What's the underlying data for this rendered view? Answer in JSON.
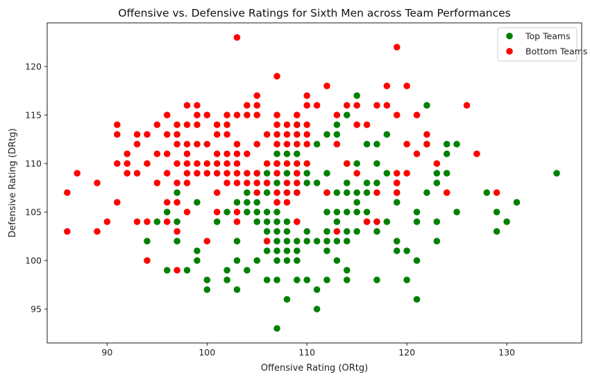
{
  "chart_data": {
    "type": "scatter",
    "title": "Offensive vs. Defensive Ratings for Sixth Men across Team Performances",
    "xlabel": "Offensive Rating (ORtg)",
    "ylabel": "Defensive Rating (DRtg)",
    "xlim": [
      84,
      137.5
    ],
    "ylim": [
      91.5,
      124.5
    ],
    "xticks": [
      90,
      100,
      110,
      120,
      130
    ],
    "yticks": [
      95,
      100,
      105,
      110,
      115,
      120
    ],
    "grid": false,
    "legend_position": "top-right",
    "series": [
      {
        "name": "Top Teams",
        "color": "#008000",
        "points": [
          [
            94,
            102
          ],
          [
            95,
            104
          ],
          [
            96,
            105
          ],
          [
            96,
            99
          ],
          [
            97,
            107
          ],
          [
            97,
            104
          ],
          [
            97,
            102
          ],
          [
            98,
            99
          ],
          [
            99,
            106
          ],
          [
            99,
            101
          ],
          [
            99,
            100
          ],
          [
            100,
            98
          ],
          [
            100,
            97
          ],
          [
            101,
            104
          ],
          [
            102,
            105
          ],
          [
            102,
            99
          ],
          [
            102,
            98
          ],
          [
            103,
            106
          ],
          [
            103,
            102
          ],
          [
            103,
            100
          ],
          [
            103,
            97
          ],
          [
            104,
            107
          ],
          [
            104,
            106
          ],
          [
            104,
            105
          ],
          [
            104,
            99
          ],
          [
            105,
            109
          ],
          [
            105,
            106
          ],
          [
            105,
            105
          ],
          [
            105,
            104
          ],
          [
            105,
            100
          ],
          [
            106,
            109
          ],
          [
            106,
            108
          ],
          [
            106,
            107
          ],
          [
            106,
            105
          ],
          [
            106,
            104
          ],
          [
            106,
            103
          ],
          [
            106,
            102
          ],
          [
            106,
            101
          ],
          [
            106,
            98
          ],
          [
            107,
            111
          ],
          [
            107,
            110
          ],
          [
            107,
            108
          ],
          [
            107,
            106
          ],
          [
            107,
            105
          ],
          [
            107,
            104
          ],
          [
            107,
            103
          ],
          [
            107,
            102
          ],
          [
            107,
            101
          ],
          [
            107,
            100
          ],
          [
            107,
            98
          ],
          [
            107,
            93
          ],
          [
            108,
            111
          ],
          [
            108,
            109
          ],
          [
            108,
            107
          ],
          [
            108,
            104
          ],
          [
            108,
            103
          ],
          [
            108,
            102
          ],
          [
            108,
            101
          ],
          [
            108,
            100
          ],
          [
            108,
            96
          ],
          [
            109,
            114
          ],
          [
            109,
            111
          ],
          [
            109,
            109
          ],
          [
            109,
            107
          ],
          [
            109,
            104
          ],
          [
            109,
            102
          ],
          [
            109,
            101
          ],
          [
            109,
            100
          ],
          [
            109,
            98
          ],
          [
            110,
            109
          ],
          [
            110,
            108
          ],
          [
            110,
            103
          ],
          [
            110,
            102
          ],
          [
            110,
            98
          ],
          [
            111,
            112
          ],
          [
            111,
            108
          ],
          [
            111,
            102
          ],
          [
            111,
            97
          ],
          [
            111,
            95
          ],
          [
            112,
            113
          ],
          [
            112,
            109
          ],
          [
            112,
            107
          ],
          [
            112,
            105
          ],
          [
            112,
            103
          ],
          [
            112,
            102
          ],
          [
            112,
            101
          ],
          [
            112,
            98
          ],
          [
            113,
            113
          ],
          [
            113,
            114
          ],
          [
            113,
            107
          ],
          [
            113,
            105
          ],
          [
            113,
            104
          ],
          [
            113,
            102
          ],
          [
            113,
            100
          ],
          [
            114,
            115
          ],
          [
            114,
            110
          ],
          [
            114,
            108
          ],
          [
            114,
            107
          ],
          [
            114,
            105
          ],
          [
            114,
            103
          ],
          [
            114,
            102
          ],
          [
            114,
            99
          ],
          [
            114,
            98
          ],
          [
            115,
            117
          ],
          [
            115,
            110
          ],
          [
            115,
            107
          ],
          [
            115,
            106
          ],
          [
            115,
            105
          ],
          [
            115,
            103
          ],
          [
            116,
            112
          ],
          [
            116,
            108
          ],
          [
            116,
            107
          ],
          [
            116,
            105
          ],
          [
            116,
            104
          ],
          [
            117,
            112
          ],
          [
            117,
            110
          ],
          [
            117,
            108
          ],
          [
            117,
            104
          ],
          [
            117,
            103
          ],
          [
            117,
            98
          ],
          [
            118,
            113
          ],
          [
            118,
            109
          ],
          [
            118,
            104
          ],
          [
            119,
            107
          ],
          [
            119,
            106
          ],
          [
            119,
            102
          ],
          [
            119,
            101
          ],
          [
            119,
            108
          ],
          [
            120,
            101
          ],
          [
            120,
            98
          ],
          [
            121,
            105
          ],
          [
            121,
            104
          ],
          [
            121,
            100
          ],
          [
            121,
            96
          ],
          [
            122,
            116
          ],
          [
            122,
            112
          ],
          [
            122,
            107
          ],
          [
            123,
            109
          ],
          [
            123,
            108
          ],
          [
            123,
            104
          ],
          [
            123,
            102
          ],
          [
            124,
            112
          ],
          [
            124,
            111
          ],
          [
            124,
            109
          ],
          [
            125,
            112
          ],
          [
            125,
            105
          ],
          [
            128,
            107
          ],
          [
            129,
            105
          ],
          [
            129,
            103
          ],
          [
            130,
            104
          ],
          [
            131,
            106
          ],
          [
            135,
            109
          ]
        ]
      },
      {
        "name": "Bottom Teams",
        "color": "#ff0000",
        "points": [
          [
            86,
            107
          ],
          [
            86,
            103
          ],
          [
            87,
            109
          ],
          [
            89,
            108
          ],
          [
            89,
            103
          ],
          [
            90,
            104
          ],
          [
            91,
            114
          ],
          [
            91,
            113
          ],
          [
            91,
            110
          ],
          [
            91,
            106
          ],
          [
            92,
            111
          ],
          [
            92,
            110
          ],
          [
            92,
            109
          ],
          [
            93,
            113
          ],
          [
            93,
            112
          ],
          [
            93,
            109
          ],
          [
            93,
            104
          ],
          [
            94,
            113
          ],
          [
            94,
            110
          ],
          [
            94,
            104
          ],
          [
            94,
            100
          ],
          [
            95,
            114
          ],
          [
            95,
            111
          ],
          [
            95,
            108
          ],
          [
            96,
            115
          ],
          [
            96,
            113
          ],
          [
            96,
            111
          ],
          [
            96,
            109
          ],
          [
            96,
            106
          ],
          [
            96,
            104
          ],
          [
            97,
            114
          ],
          [
            97,
            113
          ],
          [
            97,
            112
          ],
          [
            97,
            110
          ],
          [
            97,
            108
          ],
          [
            97,
            106
          ],
          [
            97,
            103
          ],
          [
            97,
            99
          ],
          [
            98,
            116
          ],
          [
            98,
            114
          ],
          [
            98,
            112
          ],
          [
            98,
            111
          ],
          [
            98,
            110
          ],
          [
            98,
            109
          ],
          [
            98,
            108
          ],
          [
            98,
            105
          ],
          [
            99,
            116
          ],
          [
            99,
            115
          ],
          [
            99,
            114
          ],
          [
            99,
            112
          ],
          [
            99,
            110
          ],
          [
            99,
            109
          ],
          [
            100,
            115
          ],
          [
            100,
            112
          ],
          [
            100,
            110
          ],
          [
            100,
            109
          ],
          [
            100,
            102
          ],
          [
            101,
            114
          ],
          [
            101,
            113
          ],
          [
            101,
            111
          ],
          [
            101,
            110
          ],
          [
            101,
            109
          ],
          [
            101,
            107
          ],
          [
            101,
            105
          ],
          [
            102,
            115
          ],
          [
            102,
            114
          ],
          [
            102,
            113
          ],
          [
            102,
            111
          ],
          [
            102,
            110
          ],
          [
            102,
            109
          ],
          [
            102,
            108
          ],
          [
            103,
            123
          ],
          [
            103,
            115
          ],
          [
            103,
            112
          ],
          [
            103,
            111
          ],
          [
            103,
            110
          ],
          [
            103,
            109
          ],
          [
            103,
            108
          ],
          [
            103,
            105
          ],
          [
            103,
            104
          ],
          [
            104,
            116
          ],
          [
            104,
            115
          ],
          [
            104,
            111
          ],
          [
            104,
            109
          ],
          [
            104,
            108
          ],
          [
            105,
            117
          ],
          [
            105,
            116
          ],
          [
            105,
            115
          ],
          [
            105,
            112
          ],
          [
            105,
            109
          ],
          [
            105,
            108
          ],
          [
            105,
            107
          ],
          [
            106,
            113
          ],
          [
            106,
            110
          ],
          [
            106,
            108
          ],
          [
            106,
            102
          ],
          [
            107,
            119
          ],
          [
            107,
            115
          ],
          [
            107,
            114
          ],
          [
            107,
            113
          ],
          [
            107,
            112
          ],
          [
            107,
            110
          ],
          [
            107,
            109
          ],
          [
            107,
            107
          ],
          [
            107,
            106
          ],
          [
            108,
            114
          ],
          [
            108,
            113
          ],
          [
            108,
            112
          ],
          [
            108,
            110
          ],
          [
            108,
            108
          ],
          [
            108,
            107
          ],
          [
            108,
            106
          ],
          [
            109,
            115
          ],
          [
            109,
            114
          ],
          [
            109,
            113
          ],
          [
            109,
            112
          ],
          [
            109,
            110
          ],
          [
            109,
            109
          ],
          [
            109,
            108
          ],
          [
            109,
            107
          ],
          [
            109,
            104
          ],
          [
            110,
            117
          ],
          [
            110,
            116
          ],
          [
            110,
            114
          ],
          [
            110,
            113
          ],
          [
            110,
            112
          ],
          [
            110,
            110
          ],
          [
            111,
            116
          ],
          [
            112,
            118
          ],
          [
            112,
            107
          ],
          [
            113,
            115
          ],
          [
            113,
            112
          ],
          [
            113,
            103
          ],
          [
            114,
            116
          ],
          [
            114,
            110
          ],
          [
            115,
            116
          ],
          [
            115,
            114
          ],
          [
            115,
            109
          ],
          [
            116,
            114
          ],
          [
            116,
            104
          ],
          [
            117,
            116
          ],
          [
            117,
            107
          ],
          [
            117,
            104
          ],
          [
            118,
            118
          ],
          [
            118,
            116
          ],
          [
            119,
            122
          ],
          [
            119,
            115
          ],
          [
            119,
            109
          ],
          [
            119,
            108
          ],
          [
            119,
            107
          ],
          [
            120,
            118
          ],
          [
            120,
            112
          ],
          [
            120,
            109
          ],
          [
            121,
            115
          ],
          [
            121,
            111
          ],
          [
            122,
            113
          ],
          [
            122,
            112
          ],
          [
            123,
            110
          ],
          [
            124,
            107
          ],
          [
            126,
            116
          ],
          [
            127,
            111
          ],
          [
            129,
            107
          ]
        ]
      }
    ]
  }
}
